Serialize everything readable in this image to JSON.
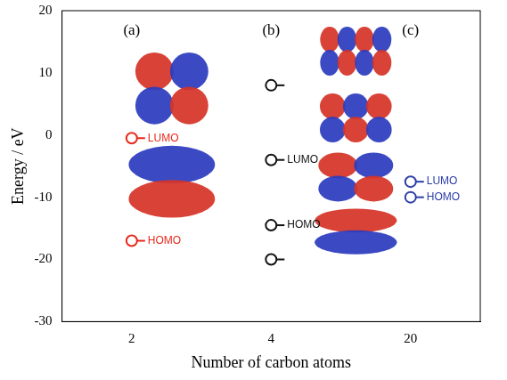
{
  "chart_data": {
    "type": "scatter",
    "xlabel": "Number of carbon atoms",
    "ylabel": "Energy / eV",
    "categories": [
      "2",
      "4",
      "20"
    ],
    "ylim": [
      -30,
      20
    ],
    "yticks": [
      -30,
      -20,
      -10,
      0,
      10,
      20
    ],
    "grid": false,
    "series": [
      {
        "color": "#e8291c",
        "marker": "level",
        "x": [
          "2",
          "2"
        ],
        "values": [
          -0.5,
          -17
        ]
      },
      {
        "color": "#111111",
        "marker": "level",
        "x": [
          "4",
          "4",
          "4",
          "4"
        ],
        "values": [
          8,
          -4,
          -14.5,
          -20
        ]
      },
      {
        "color": "#2c3ea8",
        "marker": "level",
        "x": [
          "20",
          "20"
        ],
        "values": [
          -7.5,
          -10
        ]
      }
    ],
    "annotations": [
      {
        "text": "(a)",
        "x": "2"
      },
      {
        "text": "(b)",
        "x": "4"
      },
      {
        "text": "(c)",
        "x": "20"
      },
      {
        "text": "LUMO",
        "x": "2",
        "y": -0.5,
        "color": "#e8291c"
      },
      {
        "text": "HOMO",
        "x": "2",
        "y": -17,
        "color": "#e8291c"
      },
      {
        "text": "LUMO",
        "x": "4",
        "y": -4,
        "color": "#111111"
      },
      {
        "text": "HOMO",
        "x": "4",
        "y": -14.5,
        "color": "#111111"
      },
      {
        "text": "LUMO",
        "x": "20",
        "y": -7.5,
        "color": "#2c3ea8"
      },
      {
        "text": "HOMO",
        "x": "20",
        "y": -10,
        "color": "#2c3ea8"
      }
    ]
  }
}
